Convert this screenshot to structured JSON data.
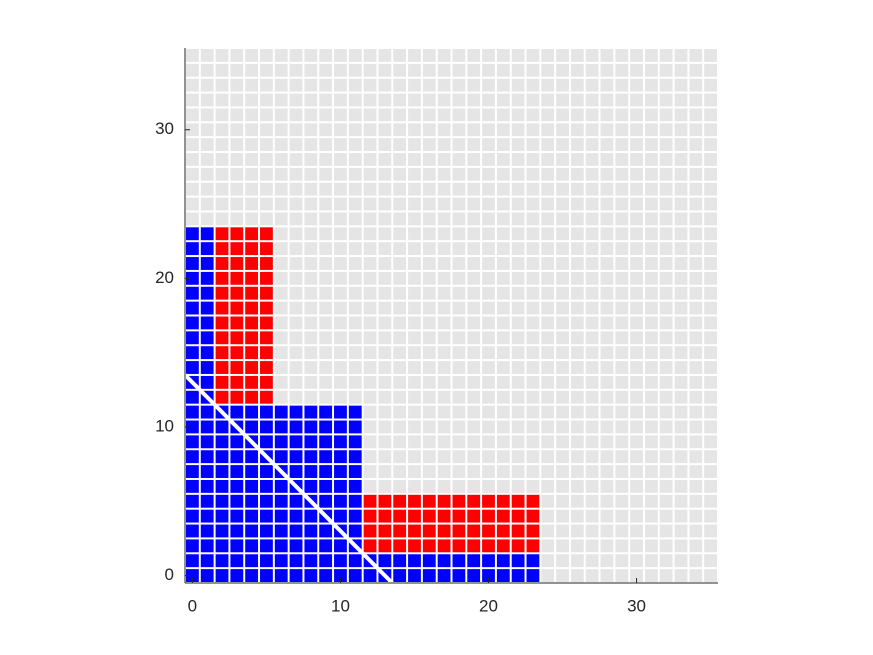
{
  "chart_data": {
    "type": "cellgrid",
    "xlim": [
      -0.5,
      35.5
    ],
    "ylim": [
      -0.5,
      35.5
    ],
    "xticks": [
      0,
      10,
      20,
      30
    ],
    "yticks": [
      0,
      10,
      20,
      30
    ],
    "cell_color": "#e5e5e5",
    "blocks": [
      {
        "x0": 0,
        "x1": 1,
        "y0": 0,
        "y1": 23,
        "color": "#0000ff"
      },
      {
        "x0": 2,
        "x1": 5,
        "y0": 12,
        "y1": 23,
        "color": "#ff0000"
      },
      {
        "x0": 2,
        "x1": 11,
        "y0": 0,
        "y1": 11,
        "color": "#0000ff"
      },
      {
        "x0": 12,
        "x1": 23,
        "y0": 2,
        "y1": 5,
        "color": "#ff0000"
      },
      {
        "x0": 12,
        "x1": 23,
        "y0": 0,
        "y1": 1,
        "color": "#0000ff"
      }
    ],
    "line": {
      "x": [
        -0.5,
        13.5
      ],
      "y": [
        13.5,
        -0.5
      ],
      "color": "#ffffff"
    }
  }
}
